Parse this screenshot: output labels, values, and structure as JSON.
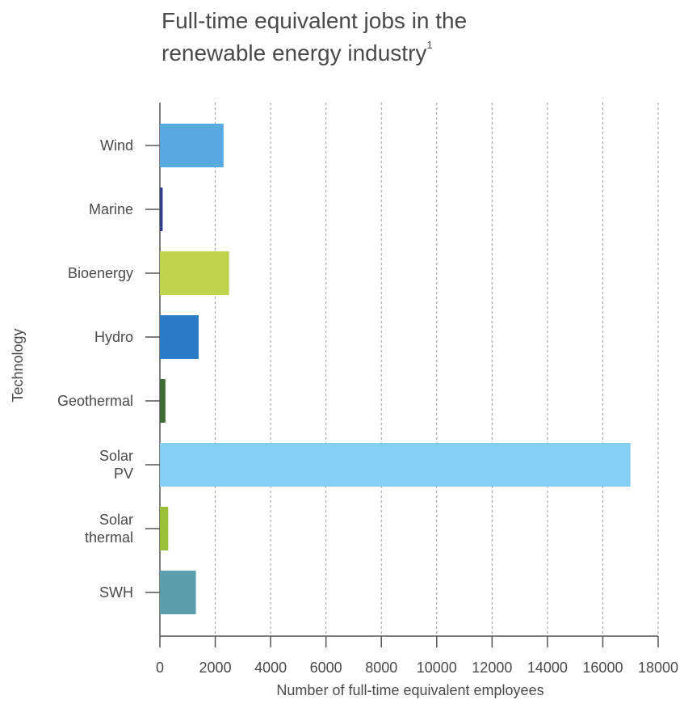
{
  "chart_data": {
    "type": "hbar",
    "title": "Full-time equivalent jobs in the\nrenewable energy industry",
    "title_note": "1",
    "x_label": "Number of full-time equivalent employees",
    "y_label": "Technology",
    "categories": [
      "Wind",
      "Marine",
      "Bioenergy",
      "Hydro",
      "Geothermal",
      "Solar\nPV",
      "Solar\nthermal",
      "SWH"
    ],
    "values": [
      2300,
      100,
      2500,
      1400,
      200,
      17000,
      300,
      1300
    ],
    "colors": [
      "#5aa9e0",
      "#2c3e8c",
      "#bfd34e",
      "#2a7cc7",
      "#3f6b35",
      "#83cff4",
      "#9cbf3a",
      "#5a9fab"
    ],
    "xlim": [
      0,
      18000
    ],
    "xticks": [
      0,
      2000,
      4000,
      6000,
      8000,
      10000,
      12000,
      14000,
      16000,
      18000
    ],
    "grid": true
  }
}
